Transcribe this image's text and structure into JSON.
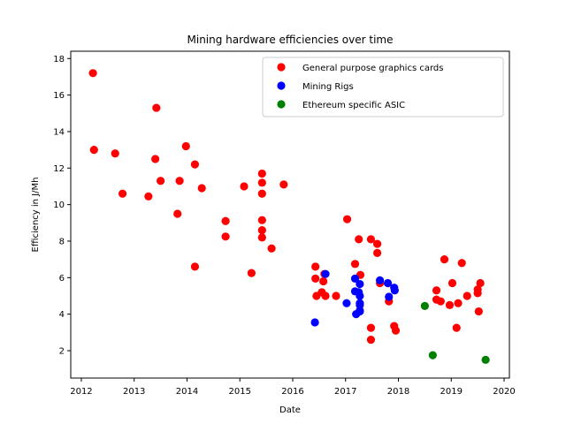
{
  "chart_data": {
    "type": "scatter",
    "title": "Mining hardware efficiencies over time",
    "xlabel": "Date",
    "ylabel": "Efficiency in J/Mh",
    "xlim": [
      2011.8,
      2020.1
    ],
    "ylim": [
      0.5,
      18.4
    ],
    "xticks": [
      2012,
      2013,
      2014,
      2015,
      2016,
      2017,
      2018,
      2019,
      2020
    ],
    "yticks": [
      2,
      4,
      6,
      8,
      10,
      12,
      14,
      16,
      18
    ],
    "grid": false,
    "legend_position": "top-right",
    "series": [
      {
        "name": "General purpose graphics cards",
        "color": "#ff0000",
        "points": [
          [
            2012.22,
            17.2
          ],
          [
            2012.24,
            13.0
          ],
          [
            2012.64,
            12.8
          ],
          [
            2012.78,
            10.6
          ],
          [
            2013.27,
            10.45
          ],
          [
            2013.4,
            12.5
          ],
          [
            2013.42,
            15.3
          ],
          [
            2013.5,
            11.3
          ],
          [
            2013.82,
            9.5
          ],
          [
            2013.86,
            11.3
          ],
          [
            2013.98,
            13.2
          ],
          [
            2014.15,
            12.2
          ],
          [
            2014.15,
            6.6
          ],
          [
            2014.28,
            10.9
          ],
          [
            2014.73,
            9.1
          ],
          [
            2014.73,
            8.25
          ],
          [
            2015.08,
            11.0
          ],
          [
            2015.22,
            6.25
          ],
          [
            2015.42,
            11.7
          ],
          [
            2015.42,
            11.2
          ],
          [
            2015.42,
            10.6
          ],
          [
            2015.42,
            9.15
          ],
          [
            2015.42,
            8.6
          ],
          [
            2015.42,
            8.2
          ],
          [
            2015.6,
            7.6
          ],
          [
            2015.83,
            11.1
          ],
          [
            2016.43,
            6.6
          ],
          [
            2016.43,
            5.95
          ],
          [
            2016.45,
            5.0
          ],
          [
            2016.55,
            5.2
          ],
          [
            2016.58,
            5.8
          ],
          [
            2016.6,
            6.2
          ],
          [
            2016.62,
            5.0
          ],
          [
            2016.82,
            5.0
          ],
          [
            2017.03,
            9.2
          ],
          [
            2017.18,
            6.75
          ],
          [
            2017.25,
            8.1
          ],
          [
            2017.28,
            6.15
          ],
          [
            2017.48,
            8.1
          ],
          [
            2017.48,
            3.25
          ],
          [
            2017.48,
            2.6
          ],
          [
            2017.6,
            7.85
          ],
          [
            2017.6,
            7.35
          ],
          [
            2017.65,
            5.7
          ],
          [
            2017.82,
            4.7
          ],
          [
            2017.92,
            3.35
          ],
          [
            2017.95,
            3.1
          ],
          [
            2018.72,
            5.3
          ],
          [
            2018.72,
            4.8
          ],
          [
            2018.8,
            4.7
          ],
          [
            2018.87,
            7.0
          ],
          [
            2018.97,
            4.5
          ],
          [
            2019.02,
            5.7
          ],
          [
            2019.1,
            3.25
          ],
          [
            2019.13,
            4.6
          ],
          [
            2019.2,
            6.8
          ],
          [
            2019.3,
            5.0
          ],
          [
            2019.5,
            5.35
          ],
          [
            2019.5,
            5.15
          ],
          [
            2019.52,
            4.15
          ],
          [
            2019.55,
            5.7
          ]
        ]
      },
      {
        "name": "Mining Rigs",
        "color": "#0000ff",
        "points": [
          [
            2016.42,
            3.55
          ],
          [
            2016.62,
            6.2
          ],
          [
            2017.02,
            4.6
          ],
          [
            2017.18,
            5.95
          ],
          [
            2017.18,
            5.25
          ],
          [
            2017.2,
            4.0
          ],
          [
            2017.25,
            5.2
          ],
          [
            2017.27,
            5.65
          ],
          [
            2017.27,
            5.0
          ],
          [
            2017.27,
            4.6
          ],
          [
            2017.27,
            4.5
          ],
          [
            2017.27,
            4.2
          ],
          [
            2017.27,
            4.15
          ],
          [
            2017.65,
            5.85
          ],
          [
            2017.8,
            5.7
          ],
          [
            2017.82,
            4.95
          ],
          [
            2017.92,
            5.45
          ],
          [
            2017.93,
            5.3
          ]
        ]
      },
      {
        "name": "Ethereum specific ASIC",
        "color": "#008000",
        "points": [
          [
            2018.5,
            4.45
          ],
          [
            2018.65,
            1.75
          ],
          [
            2019.65,
            1.5
          ]
        ]
      }
    ]
  }
}
